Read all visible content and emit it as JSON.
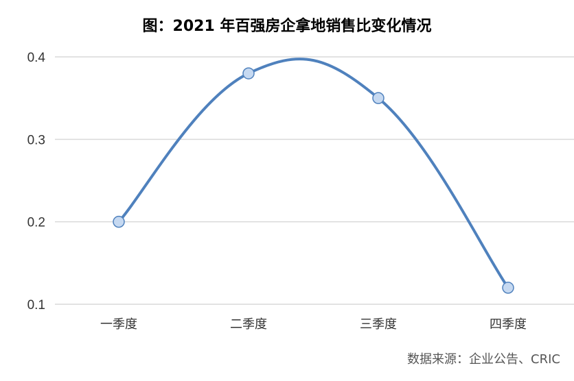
{
  "chart_data": {
    "type": "line",
    "title": "图：2021 年百强房企拿地销售比变化情况",
    "categories": [
      "一季度",
      "二季度",
      "三季度",
      "四季度"
    ],
    "series": [
      {
        "values": [
          0.2,
          0.38,
          0.35,
          0.12
        ]
      }
    ],
    "yticks": [
      "0.1",
      "0.2",
      "0.3",
      "0.4"
    ],
    "ylim": [
      0.1,
      0.4
    ],
    "smooth": true,
    "grid": true,
    "line_color": "#4f81bd",
    "marker_fill": "#c6d9f1",
    "source": "数据来源：企业公告、CRIC"
  }
}
